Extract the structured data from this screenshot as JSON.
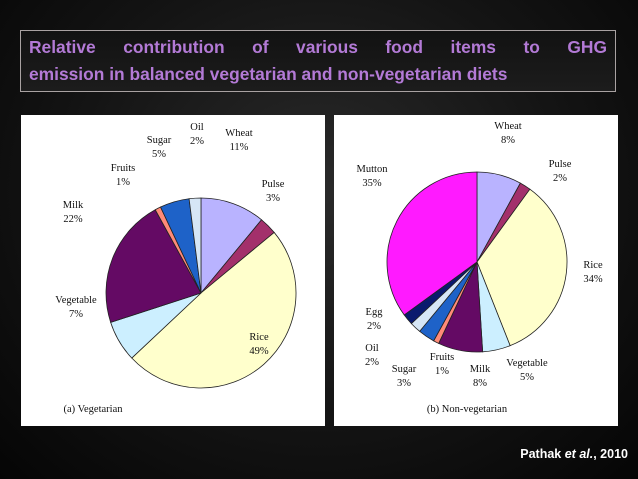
{
  "slide": {
    "title_line1": "Relative contribution of various food items to GHG",
    "title_line2": "emission in balanced vegetarian and non-vegetarian diets",
    "citation_author": "Pathak",
    "citation_etal": "et al.",
    "citation_year": ", 2010"
  },
  "chart_data": [
    {
      "type": "pie",
      "title": "(a) Vegetarian",
      "slices": [
        {
          "label": "Wheat",
          "value": 11,
          "value_label": "11%",
          "color": "#b9b3ff"
        },
        {
          "label": "Pulse",
          "value": 3,
          "value_label": "3%",
          "color": "#a3306b"
        },
        {
          "label": "Rice",
          "value": 49,
          "value_label": "49%",
          "color": "#ffffcc"
        },
        {
          "label": "Vegetable",
          "value": 7,
          "value_label": "7%",
          "color": "#ccefff"
        },
        {
          "label": "Milk",
          "value": 22,
          "value_label": "22%",
          "color": "#640a64"
        },
        {
          "label": "Fruits",
          "value": 1,
          "value_label": "1%",
          "color": "#ff8a78"
        },
        {
          "label": "Sugar",
          "value": 5,
          "value_label": "5%",
          "color": "#1e62c8"
        },
        {
          "label": "Oil",
          "value": 2,
          "value_label": "2%",
          "color": "#d6e6f6"
        }
      ]
    },
    {
      "type": "pie",
      "title": "(b) Non-vegetarian",
      "slices": [
        {
          "label": "Wheat",
          "value": 8,
          "value_label": "8%",
          "color": "#b9b3ff"
        },
        {
          "label": "Pulse",
          "value": 2,
          "value_label": "2%",
          "color": "#a3306b"
        },
        {
          "label": "Rice",
          "value": 34,
          "value_label": "34%",
          "color": "#ffffcc"
        },
        {
          "label": "Vegetable",
          "value": 5,
          "value_label": "5%",
          "color": "#ccefff"
        },
        {
          "label": "Milk",
          "value": 8,
          "value_label": "8%",
          "color": "#640a64"
        },
        {
          "label": "Fruits",
          "value": 1,
          "value_label": "1%",
          "color": "#ff8a78"
        },
        {
          "label": "Sugar",
          "value": 3,
          "value_label": "3%",
          "color": "#1e62c8"
        },
        {
          "label": "Oil",
          "value": 2,
          "value_label": "2%",
          "color": "#d6e6f6"
        },
        {
          "label": "Egg",
          "value": 2,
          "value_label": "2%",
          "color": "#0a1a6e"
        },
        {
          "label": "Mutton",
          "value": 35,
          "value_label": "35%",
          "color": "#ff1aff"
        }
      ]
    }
  ]
}
